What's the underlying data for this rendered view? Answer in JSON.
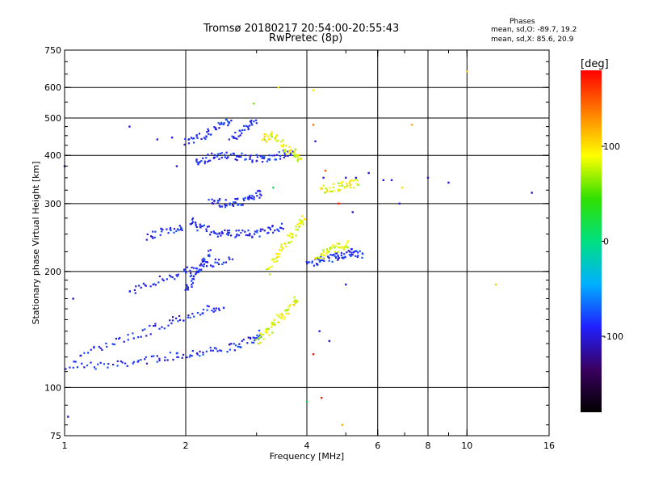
{
  "header": {
    "title_line1": "Tromsø 20180217 20:54:00-20:55:43",
    "title_line2": "RwPretec (8p)"
  },
  "info": {
    "label": "Phases",
    "line_o": "mean, sd,O: -89.7, 19.2",
    "line_x": "mean, sd,X:  85.6, 20.9"
  },
  "chart_data": {
    "type": "scatter",
    "title": "Tromsø 20180217 20:54:00-20:55:43",
    "subtitle": "RwPretec (8p)",
    "xlabel": "Frequency [MHz]",
    "ylabel": "Stationary phase Virtual Height [km]",
    "x_scale": "log",
    "y_scale": "log",
    "xlim": [
      1,
      16
    ],
    "ylim": [
      75,
      750
    ],
    "x_ticks": [
      1,
      2,
      4,
      6,
      8,
      10,
      16
    ],
    "x_tick_labels": [
      "1",
      "2",
      "4",
      "6",
      "8",
      "10",
      "16"
    ],
    "x_grid_lines": [
      2,
      4,
      6,
      8,
      10
    ],
    "y_ticks": [
      75,
      100,
      200,
      300,
      400,
      500,
      600,
      750
    ],
    "y_tick_labels": [
      "75",
      "100",
      "200",
      "300",
      "400",
      "500",
      "600",
      "750"
    ],
    "y_grid_lines": [
      100,
      200,
      300,
      400,
      500,
      600
    ],
    "grid": true,
    "colorbar": {
      "label": "[deg]",
      "min": -180,
      "max": 180,
      "ticks": [
        -100,
        0,
        100
      ],
      "tick_labels": [
        "-100",
        "0",
        "100"
      ],
      "colormap": [
        "#000000",
        "#3a0060",
        "#2020ff",
        "#00b0ff",
        "#00e080",
        "#30e000",
        "#ffff00",
        "#ff8000",
        "#ff0000"
      ]
    },
    "series": [
      {
        "name": "O",
        "phase_mean": -89.7,
        "phase_sd": 19.2,
        "color": "#1f3cff",
        "traces": [
          {
            "f": [
              1.02,
              1.3,
              1.6,
              1.9,
              2.2,
              2.6,
              2.9,
              3.1
            ],
            "h": [
              114,
              114,
              118,
              121,
              124,
              127,
              132,
              140
            ]
          },
          {
            "f": [
              1.05,
              1.3,
              1.6,
              1.9,
              2.2,
              2.5
            ],
            "h": [
              118,
              130,
              140,
              150,
              158,
              162
            ]
          },
          {
            "f": [
              1.45,
              1.7,
              2.0,
              2.3,
              2.6
            ],
            "h": [
              175,
              190,
              200,
              210,
              215
            ]
          },
          {
            "f": [
              1.6,
              1.8,
              2.0
            ],
            "h": [
              245,
              255,
              262
            ]
          },
          {
            "f": [
              2.05,
              2.2,
              2.4,
              2.6,
              2.9,
              3.2,
              3.5
            ],
            "h": [
              270,
              258,
              252,
              250,
              250,
              255,
              262
            ]
          },
          {
            "f": [
              2.3,
              2.5,
              2.7,
              2.9,
              3.1
            ],
            "h": [
              305,
              300,
              302,
              310,
              320
            ]
          },
          {
            "f": [
              2.1,
              2.3,
              2.5,
              2.8,
              3.1,
              3.4,
              3.7
            ],
            "h": [
              385,
              395,
              400,
              395,
              390,
              400,
              405
            ]
          },
          {
            "f": [
              2.0,
              2.2,
              2.4,
              2.6
            ],
            "h": [
              430,
              450,
              470,
              500
            ]
          },
          {
            "f": [
              2.6,
              2.8,
              3.0
            ],
            "h": [
              440,
              470,
              500
            ]
          },
          {
            "f": [
              4.0,
              4.3,
              4.6,
              4.9,
              5.2,
              5.5
            ],
            "h": [
              210,
              213,
              217,
              220,
              224,
              222
            ]
          },
          {
            "f": [
              2.0,
              2.1,
              2.2,
              2.3
            ],
            "h": [
              180,
              195,
              210,
              225
            ]
          }
        ]
      },
      {
        "name": "X",
        "phase_mean": 85.6,
        "phase_sd": 20.9,
        "color": "#ffc000",
        "traces": [
          {
            "f": [
              3.0,
              3.2,
              3.4,
              3.6,
              3.8
            ],
            "h": [
              130,
              140,
              150,
              160,
              170
            ]
          },
          {
            "f": [
              3.2,
              3.4,
              3.6,
              3.8,
              3.95
            ],
            "h": [
              200,
              220,
              240,
              260,
              280
            ]
          },
          {
            "f": [
              3.1,
              3.3,
              3.5,
              3.7,
              3.9
            ],
            "h": [
              440,
              455,
              420,
              405,
              390
            ]
          },
          {
            "f": [
              4.2,
              4.5,
              4.8,
              5.1
            ],
            "h": [
              215,
              225,
              232,
              235
            ]
          },
          {
            "f": [
              4.3,
              4.7,
              5.0,
              5.4
            ],
            "h": [
              325,
              330,
              335,
              340
            ]
          }
        ]
      }
    ],
    "scatter_points": [
      {
        "f": 1.45,
        "h": 475,
        "phase": -100
      },
      {
        "f": 1.7,
        "h": 440,
        "phase": -100
      },
      {
        "f": 1.85,
        "h": 445,
        "phase": -100
      },
      {
        "f": 1.0,
        "h": 375,
        "phase": -100
      },
      {
        "f": 1.05,
        "h": 170,
        "phase": -100
      },
      {
        "f": 1.02,
        "h": 84,
        "phase": -100
      },
      {
        "f": 1.9,
        "h": 375,
        "phase": -100
      },
      {
        "f": 4.2,
        "h": 435,
        "phase": -100
      },
      {
        "f": 4.3,
        "h": 140,
        "phase": -100
      },
      {
        "f": 4.4,
        "h": 350,
        "phase": -100
      },
      {
        "f": 4.55,
        "h": 132,
        "phase": -100
      },
      {
        "f": 5.0,
        "h": 350,
        "phase": -100
      },
      {
        "f": 5.2,
        "h": 285,
        "phase": -100
      },
      {
        "f": 5.3,
        "h": 350,
        "phase": -100
      },
      {
        "f": 5.7,
        "h": 360,
        "phase": -100
      },
      {
        "f": 6.2,
        "h": 345,
        "phase": -100
      },
      {
        "f": 6.5,
        "h": 345,
        "phase": -100
      },
      {
        "f": 6.8,
        "h": 300,
        "phase": -100
      },
      {
        "f": 8.0,
        "h": 350,
        "phase": -100
      },
      {
        "f": 9.0,
        "h": 340,
        "phase": -100
      },
      {
        "f": 14.5,
        "h": 320,
        "phase": -110
      },
      {
        "f": 3.4,
        "h": 600,
        "phase": 100
      },
      {
        "f": 4.15,
        "h": 590,
        "phase": 100
      },
      {
        "f": 4.15,
        "h": 480,
        "phase": 140
      },
      {
        "f": 6.9,
        "h": 330,
        "phase": 100
      },
      {
        "f": 7.3,
        "h": 480,
        "phase": 120
      },
      {
        "f": 10.0,
        "h": 660,
        "phase": 110
      },
      {
        "f": 11.8,
        "h": 185,
        "phase": 110
      },
      {
        "f": 4.15,
        "h": 122,
        "phase": 170
      },
      {
        "f": 4.35,
        "h": 94,
        "phase": 170
      },
      {
        "f": 4.9,
        "h": 80,
        "phase": 120
      },
      {
        "f": 4.0,
        "h": 92,
        "phase": 20
      },
      {
        "f": 5.0,
        "h": 185,
        "phase": -100
      },
      {
        "f": 4.45,
        "h": 365,
        "phase": 150
      },
      {
        "f": 4.8,
        "h": 300,
        "phase": 170
      },
      {
        "f": 2.95,
        "h": 545,
        "phase": 60
      },
      {
        "f": 3.3,
        "h": 330,
        "phase": 10
      }
    ]
  }
}
